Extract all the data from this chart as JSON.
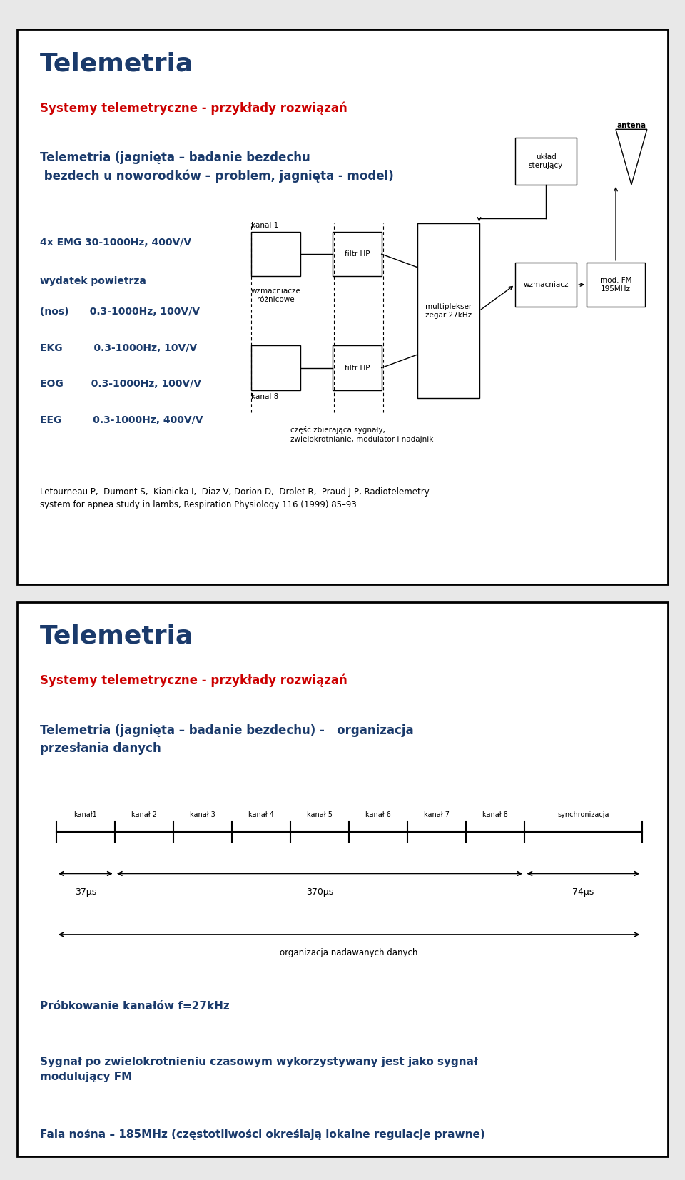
{
  "bg_color": "#e8e8e8",
  "panel1_bg": "#ffffff",
  "panel2_bg": "#ffffff",
  "title_color": "#1a3a6b",
  "subtitle_color": "#cc0000",
  "body_color": "#1a3a6b",
  "black": "#000000",
  "slide1_title": "Telemetria",
  "slide1_subtitle": "Systemy telemetryczne - przykłady rozwiązań",
  "slide1_heading": "Telemetria (jagnięta – badanie bezdechu\n bezdech u noworodków – problem, jagnięta - model)",
  "ref_text": "Letourneau P,  Dumont S,  Kianicka I,  Diaz V, Dorion D,  Drolet R,  Praud J-P, Radiotelemetry\nsystem for apnea study in lambs, Respiration Physiology 116 (1999) 85–93",
  "slide2_title": "Telemetria",
  "slide2_subtitle": "Systemy telemetryczne - przykłady rozwiązań",
  "slide2_heading": "Telemetria (jagnięta – badanie bezdechu) -   organizacja\nprzesłania danych",
  "channel_labels": [
    "kanał1",
    "kanał 2",
    "kanał 3",
    "kanał 4",
    "kanał 5",
    "kanał 6",
    "kanał 7",
    "kanał 8",
    "synchronizacja"
  ],
  "bullet1": "Próbkowanie kanałów f=27kHz",
  "bullet2": "Sygnał po zwielokrotnieniu czasowym wykorzystywany jest jako sygnał\nmodulujący FM",
  "bullet3": "Fala nośna – 185MHz (częstotliwości określają lokalne regulacje prawne)"
}
